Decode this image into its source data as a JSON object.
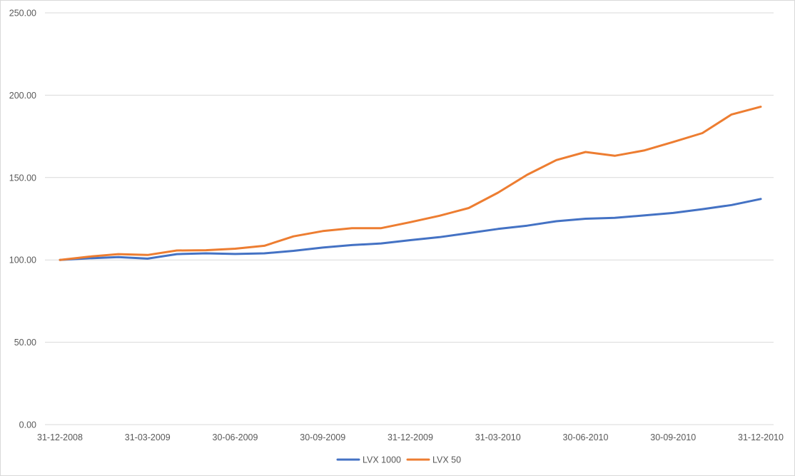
{
  "chart_data": {
    "type": "line",
    "title": "",
    "xlabel": "",
    "ylabel": "",
    "ylim": [
      0,
      250
    ],
    "y_ticks": [
      "0.00",
      "50.00",
      "100.00",
      "150.00",
      "200.00",
      "250.00"
    ],
    "y_tick_values": [
      0,
      50,
      100,
      150,
      200,
      250
    ],
    "grid": "horizontal",
    "legend_position": "bottom",
    "x": [
      "31-12-2008",
      "31-01-2009",
      "28-02-2009",
      "31-03-2009",
      "30-04-2009",
      "31-05-2009",
      "30-06-2009",
      "31-07-2009",
      "31-08-2009",
      "30-09-2009",
      "31-10-2009",
      "30-11-2009",
      "31-12-2009",
      "31-01-2010",
      "28-02-2010",
      "31-03-2010",
      "30-04-2010",
      "31-05-2010",
      "30-06-2010",
      "31-07-2010",
      "31-08-2010",
      "30-09-2010",
      "31-10-2010",
      "30-11-2010",
      "31-12-2010"
    ],
    "x_tick_labels": [
      "31-12-2008",
      "31-03-2009",
      "30-06-2009",
      "30-09-2009",
      "31-12-2009",
      "31-03-2010",
      "30-06-2010",
      "30-09-2010",
      "31-12-2010"
    ],
    "x_tick_indices": [
      0,
      3,
      6,
      9,
      12,
      15,
      18,
      21,
      24
    ],
    "series": [
      {
        "name": "LVX 1000",
        "color": "#4472c4",
        "values": [
          100.0,
          101.0,
          101.7,
          100.8,
          103.5,
          104.0,
          103.6,
          104.0,
          105.5,
          107.5,
          109.0,
          110.0,
          112.0,
          113.8,
          116.3,
          118.8,
          120.8,
          123.5,
          125.0,
          125.5,
          127.0,
          128.5,
          130.8,
          133.3,
          137.0
        ]
      },
      {
        "name": "LVX 50",
        "color": "#ed7d31",
        "values": [
          100.0,
          102.0,
          103.5,
          103.0,
          105.7,
          105.9,
          106.8,
          108.6,
          114.3,
          117.5,
          119.3,
          119.3,
          122.9,
          126.8,
          131.5,
          140.8,
          151.7,
          160.6,
          165.5,
          163.2,
          166.4,
          171.6,
          177.0,
          188.3,
          193.0
        ]
      }
    ]
  }
}
